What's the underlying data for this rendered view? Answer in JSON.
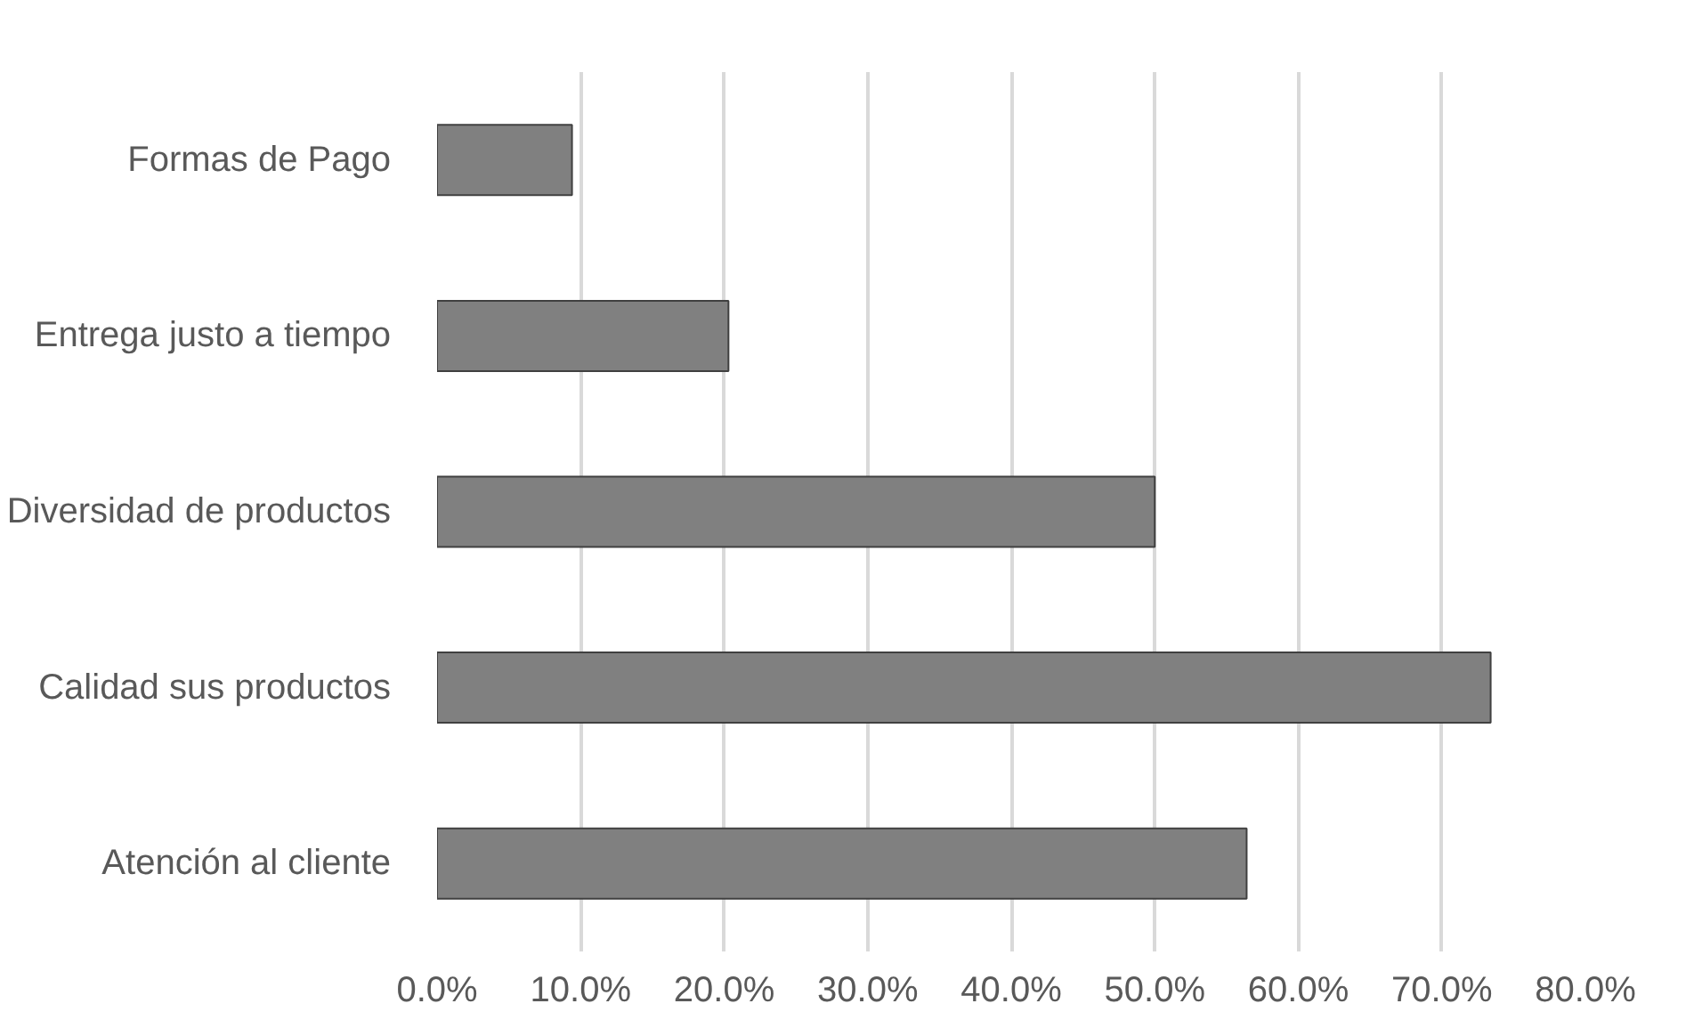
{
  "chart_data": {
    "type": "bar",
    "orientation": "horizontal",
    "categories": [
      "Formas de Pago",
      "Entrega justo a tiempo",
      "Diversidad de productos",
      "Calidad sus productos",
      "Atención al cliente"
    ],
    "values": [
      9.4,
      20.3,
      50.0,
      73.4,
      56.4
    ],
    "color": "#808080",
    "xlim": [
      0,
      80
    ],
    "xticks": [
      {
        "value": 0,
        "label": "0.0%"
      },
      {
        "value": 10,
        "label": "10.0%"
      },
      {
        "value": 20,
        "label": "20.0%"
      },
      {
        "value": 30,
        "label": "30.0%"
      },
      {
        "value": 40,
        "label": "40.0%"
      },
      {
        "value": 50,
        "label": "50.0%"
      },
      {
        "value": 60,
        "label": "60.0%"
      },
      {
        "value": 70,
        "label": "70.0%"
      },
      {
        "value": 80,
        "label": "80.0%"
      }
    ],
    "grid": "x"
  }
}
